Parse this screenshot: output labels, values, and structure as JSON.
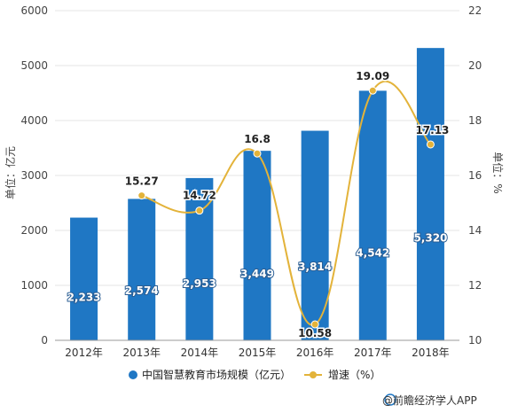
{
  "chart_data": {
    "type": "bar",
    "title": "",
    "categories": [
      "2012年",
      "2013年",
      "2014年",
      "2015年",
      "2016年",
      "2017年",
      "2018年"
    ],
    "series": [
      {
        "name": "中国智慧教育市场规模（亿元）",
        "type": "bar",
        "axis": "left",
        "values": [
          2233,
          2574,
          2953,
          3449,
          3814,
          4542,
          5320
        ],
        "labels": [
          "2,233",
          "2,574",
          "2,953",
          "3,449",
          "3,814",
          "4,542",
          "5,320"
        ],
        "color": "#1f77c4"
      },
      {
        "name": "增速（%）",
        "type": "line",
        "axis": "right",
        "values": [
          null,
          15.27,
          14.72,
          16.8,
          10.58,
          19.09,
          17.13
        ],
        "labels": [
          "",
          "15.27",
          "14.72",
          "16.8",
          "10.58",
          "19.09",
          "17.13"
        ],
        "color": "#e3b33a"
      }
    ],
    "y_left": {
      "label": "单位：亿元",
      "min": 0,
      "max": 6000,
      "ticks": [
        "0",
        "1000",
        "2000",
        "3000",
        "4000",
        "5000",
        "6000"
      ]
    },
    "y_right": {
      "label": "单位：%",
      "min": 10,
      "max": 22,
      "ticks": [
        "10",
        "12",
        "14",
        "16",
        "18",
        "20",
        "22"
      ]
    },
    "grid": true,
    "legend_position": "bottom"
  },
  "footer": {
    "source": "@前瞻经济学人APP"
  }
}
